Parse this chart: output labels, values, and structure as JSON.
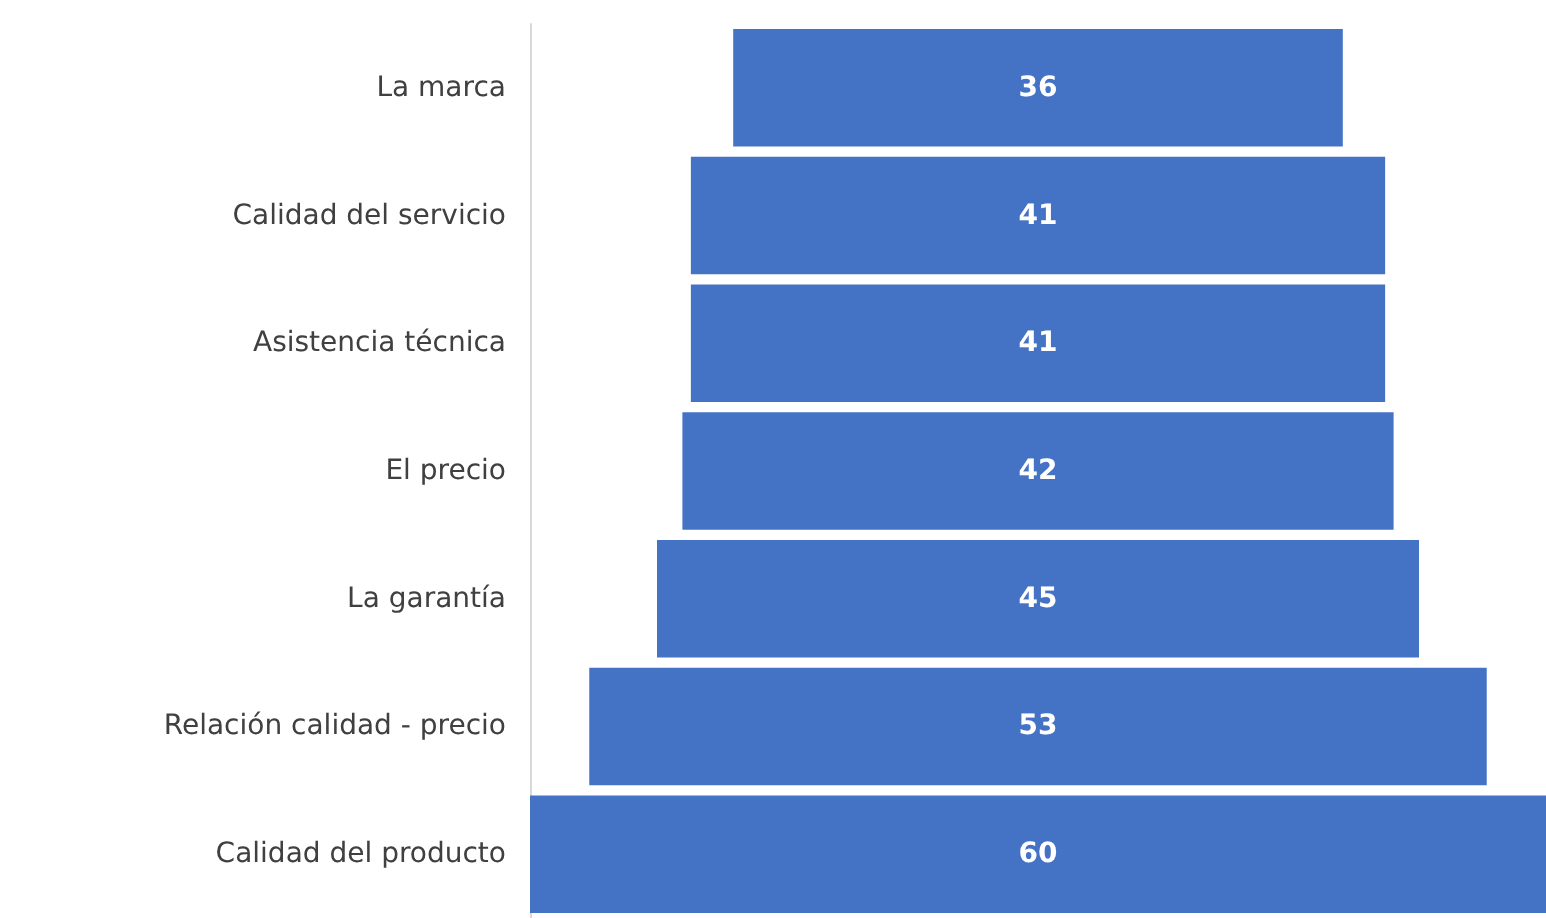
{
  "chart_data": {
    "type": "other",
    "categories": [
      "La marca",
      "Calidad del servicio",
      "Asistencia técnica",
      "El precio",
      "La garantía",
      "Relación calidad - precio",
      "Calidad del producto"
    ],
    "values": [
      36,
      41,
      41,
      42,
      45,
      53,
      60
    ],
    "color": "#4472c4",
    "data_labels": true
  }
}
